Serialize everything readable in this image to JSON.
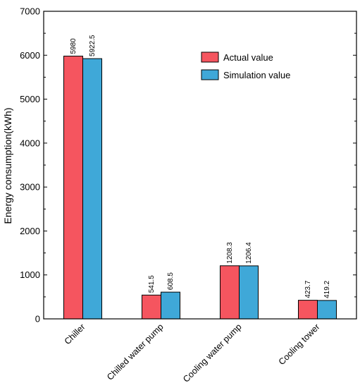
{
  "chart_data": {
    "type": "bar",
    "title": "",
    "xlabel": "",
    "ylabel": "Energy consumption(kWh)",
    "ylim": [
      0,
      7000
    ],
    "yticks": [
      0,
      1000,
      2000,
      3000,
      4000,
      5000,
      6000,
      7000
    ],
    "categories": [
      "Chiller",
      "Chilled water pump",
      "Cooling water pump",
      "Cooling tower"
    ],
    "series": [
      {
        "name": "Actual value",
        "values": [
          5980,
          541.5,
          1208.3,
          423.7
        ],
        "labels": [
          "5980",
          "541.5",
          "1208.3",
          "423.7"
        ],
        "color": "#f5555f"
      },
      {
        "name": "Simulation value",
        "values": [
          5922.5,
          608.5,
          1206.4,
          419.2
        ],
        "labels": [
          "5922.5",
          "608.5",
          "1206.4",
          "419.2"
        ],
        "color": "#3fa8d8"
      }
    ],
    "legend_position": "top-right",
    "grid": false
  }
}
